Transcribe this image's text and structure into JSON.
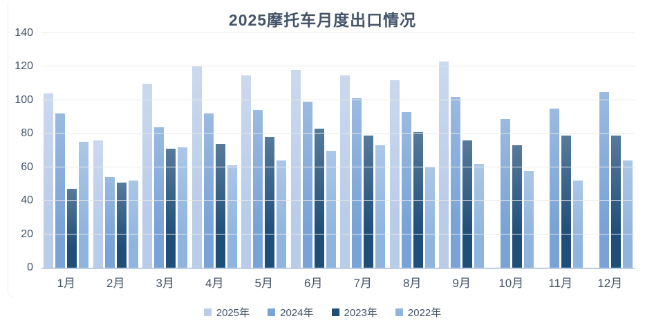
{
  "chart_data": {
    "type": "bar",
    "title": "2025摩托车月度出口情况",
    "categories": [
      "1月",
      "2月",
      "3月",
      "4月",
      "5月",
      "6月",
      "7月",
      "8月",
      "9月",
      "10月",
      "11月",
      "12月"
    ],
    "series": [
      {
        "name": "2025年",
        "color": "#B9CCE8",
        "values": [
          104,
          76,
          110,
          120,
          115,
          118,
          115,
          112,
          123,
          null,
          null,
          null
        ]
      },
      {
        "name": "2024年",
        "color": "#79A3D6",
        "values": [
          92,
          54,
          84,
          92,
          94,
          99,
          101,
          93,
          102,
          89,
          95,
          105
        ]
      },
      {
        "name": "2023年",
        "color": "#1F4E79",
        "values": [
          47,
          51,
          71,
          74,
          78,
          83,
          79,
          81,
          76,
          73,
          79,
          79
        ]
      },
      {
        "name": "2022年",
        "color": "#8FB4DE",
        "values": [
          75,
          52,
          72,
          61,
          64,
          70,
          73,
          60,
          62,
          58,
          52,
          64
        ]
      }
    ],
    "xlabel": "",
    "ylabel": "",
    "ylim": [
      0,
      140
    ],
    "yticks": [
      0,
      20,
      40,
      60,
      80,
      100,
      120,
      140
    ],
    "grid": true,
    "legend_position": "bottom",
    "colors": {
      "title_text": "#44546A",
      "axis_text": "#44546A",
      "gridline": "#E8E9EA",
      "baseline": "#BCCDE6",
      "background": "#FFFFFF"
    }
  }
}
